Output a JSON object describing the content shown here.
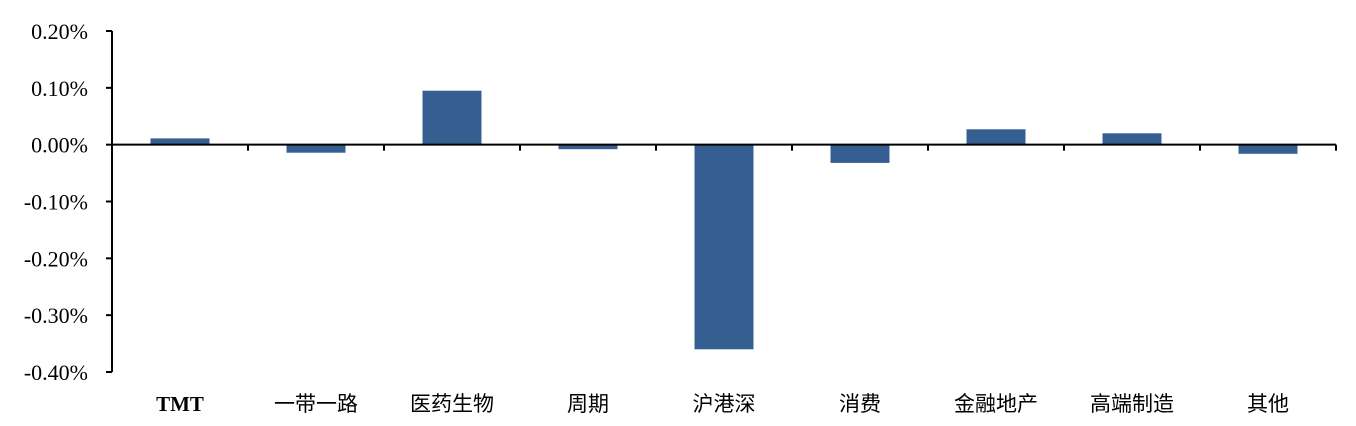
{
  "chart_data": {
    "type": "bar",
    "categories": [
      "TMT",
      "一带一路",
      "医药生物",
      "周期",
      "沪港深",
      "消费",
      "金融地产",
      "高端制造",
      "其他"
    ],
    "values": [
      0.011,
      -0.014,
      0.095,
      -0.008,
      -0.36,
      -0.032,
      0.027,
      0.02,
      -0.016
    ],
    "value_format": "percent",
    "yticks": [
      "0.20%",
      "0.10%",
      "0.00%",
      "-0.10%",
      "-0.20%",
      "-0.30%",
      "-0.40%"
    ],
    "ylim": [
      -0.4,
      0.2
    ],
    "grid": false,
    "legend": "none",
    "title": "",
    "xlabel": "",
    "ylabel": "",
    "bar_color": "#365F91",
    "axis_color": "#000000"
  }
}
